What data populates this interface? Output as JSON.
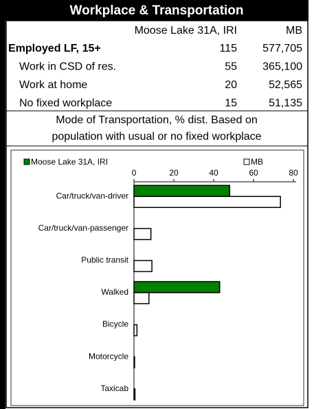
{
  "header": {
    "title": "Workplace & Transportation"
  },
  "table": {
    "columns": [
      "Moose Lake 31A, IRI",
      "MB"
    ],
    "rows": [
      [
        "Employed LF, 15+",
        "115",
        "577,705"
      ],
      [
        "Work in CSD of res.",
        "55",
        "365,100"
      ],
      [
        "Work at home",
        "20",
        "52,565"
      ],
      [
        "No fixed workplace",
        "15",
        "51,135"
      ]
    ]
  },
  "note": [
    "Mode of Transportation, % dist. Based on",
    "population with usual or no fixed workplace"
  ],
  "chart_data": {
    "type": "hbar",
    "categories": [
      "Car/truck/van-driver",
      "Car/truck/van-passenger",
      "Public transit",
      "Walked",
      "Bicycle",
      "Motorcycle",
      "Taxicab"
    ],
    "series": [
      {
        "name": "Moose Lake 31A, IRI",
        "color": "#008000",
        "values": [
          48,
          0,
          0,
          43,
          0,
          0,
          0
        ]
      },
      {
        "name": "MB",
        "color": "#ffffff",
        "values": [
          73.5,
          8.5,
          9,
          7.5,
          1.5,
          0.3,
          0.5
        ]
      }
    ],
    "xlim": [
      0,
      80
    ],
    "xticks": [
      0,
      20,
      40,
      60,
      80
    ]
  }
}
